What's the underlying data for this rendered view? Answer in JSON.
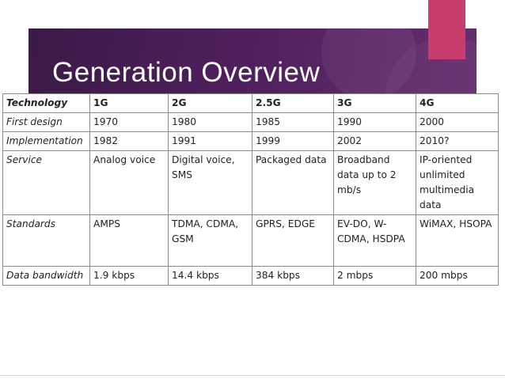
{
  "slide": {
    "title": "Generation Overview"
  },
  "colors": {
    "band": "#4e1f5c",
    "accent": "#c83d6e"
  },
  "table": {
    "header": [
      "Technology",
      "1G",
      "2G",
      "2.5G",
      "3G",
      "4G"
    ],
    "rows": [
      {
        "label": "First design",
        "cells": [
          "1970",
          "1980",
          "1985",
          "1990",
          "2000"
        ]
      },
      {
        "label": "Implementation",
        "cells": [
          "1982",
          "1991",
          "1999",
          "2002",
          "2010?"
        ]
      },
      {
        "label": "Service",
        "cells": [
          "Analog voice",
          "Digital voice, SMS",
          "Packaged data",
          "Broadband data up to 2 mb/s",
          "IP-oriented unlimited multimedia data"
        ]
      },
      {
        "label": "Standards",
        "cells": [
          "AMPS",
          "TDMA, CDMA, GSM",
          "GPRS, EDGE",
          "EV-DO, W-CDMA, HSDPA",
          "WiMAX, HSOPA"
        ]
      },
      {
        "label": "Data bandwidth",
        "cells": [
          "1.9 kbps",
          "14.4 kbps",
          "384 kbps",
          "2 mbps",
          "200 mbps"
        ]
      }
    ]
  }
}
